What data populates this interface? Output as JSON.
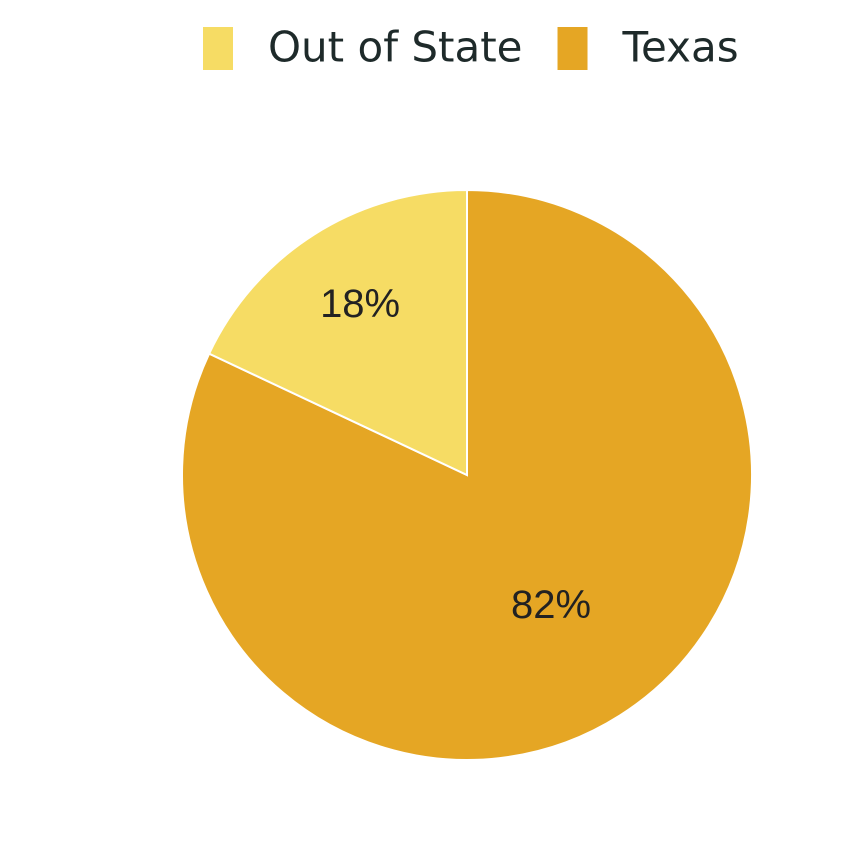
{
  "chart_data": {
    "type": "pie",
    "categories": [
      "Out of State",
      "Texas"
    ],
    "values": [
      18,
      82
    ],
    "value_labels": [
      "18%",
      "82%"
    ],
    "colors": [
      "#f6dc64",
      "#e5a624"
    ],
    "legend": "top"
  }
}
